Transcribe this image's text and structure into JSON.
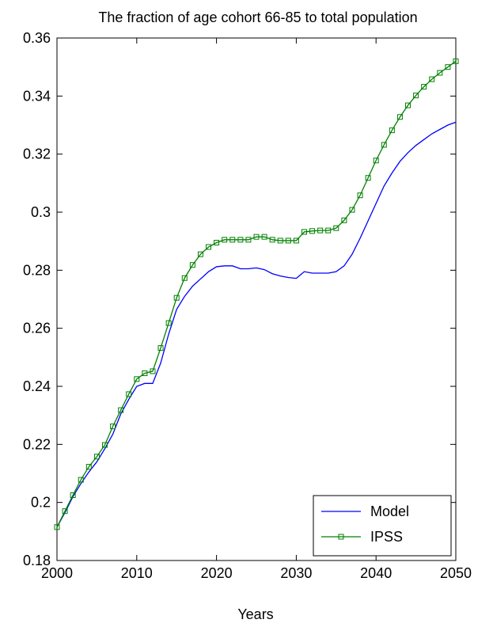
{
  "chart_data": {
    "type": "line",
    "title": "The fraction of age cohort 66-85 to total population",
    "xlabel": "Years",
    "ylabel": "",
    "xlim": [
      2000,
      2050
    ],
    "ylim": [
      0.18,
      0.36
    ],
    "xticks": [
      "2000",
      "2010",
      "2020",
      "2030",
      "2040",
      "2050"
    ],
    "yticks": [
      "0.18",
      "0.2",
      "0.22",
      "0.24",
      "0.26",
      "0.28",
      "0.3",
      "0.32",
      "0.34",
      "0.36"
    ],
    "grid": false,
    "legend_position": "bottom-right",
    "series": [
      {
        "name": "Model",
        "color": "#0000ff",
        "marker": "none",
        "x": [
          2000,
          2001,
          2002,
          2003,
          2004,
          2005,
          2006,
          2007,
          2008,
          2009,
          2010,
          2011,
          2012,
          2013,
          2014,
          2015,
          2016,
          2017,
          2018,
          2019,
          2020,
          2021,
          2022,
          2023,
          2024,
          2025,
          2026,
          2027,
          2028,
          2029,
          2030,
          2031,
          2032,
          2033,
          2034,
          2035,
          2036,
          2037,
          2038,
          2039,
          2040,
          2041,
          2042,
          2043,
          2044,
          2045,
          2046,
          2047,
          2048,
          2049,
          2050
        ],
        "values": [
          0.1915,
          0.1965,
          0.202,
          0.2065,
          0.2105,
          0.214,
          0.2185,
          0.2235,
          0.2305,
          0.2355,
          0.24,
          0.241,
          0.241,
          0.248,
          0.258,
          0.2665,
          0.271,
          0.2745,
          0.277,
          0.2795,
          0.2812,
          0.2815,
          0.2815,
          0.2805,
          0.2805,
          0.2808,
          0.2802,
          0.2788,
          0.278,
          0.2775,
          0.2772,
          0.2795,
          0.279,
          0.279,
          0.279,
          0.2795,
          0.2815,
          0.2855,
          0.291,
          0.297,
          0.303,
          0.309,
          0.3135,
          0.3175,
          0.3205,
          0.323,
          0.325,
          0.327,
          0.3285,
          0.33,
          0.331
        ]
      },
      {
        "name": "IPSS",
        "color": "#008000",
        "marker": "square",
        "x": [
          2000,
          2001,
          2002,
          2003,
          2004,
          2005,
          2006,
          2007,
          2008,
          2009,
          2010,
          2011,
          2012,
          2013,
          2014,
          2015,
          2016,
          2017,
          2018,
          2019,
          2020,
          2021,
          2022,
          2023,
          2024,
          2025,
          2026,
          2027,
          2028,
          2029,
          2030,
          2031,
          2032,
          2033,
          2034,
          2035,
          2036,
          2037,
          2038,
          2039,
          2040,
          2041,
          2042,
          2043,
          2044,
          2045,
          2046,
          2047,
          2048,
          2049,
          2050
        ],
        "values": [
          0.1915,
          0.197,
          0.2025,
          0.2078,
          0.2123,
          0.2158,
          0.2198,
          0.2262,
          0.2318,
          0.2373,
          0.2425,
          0.2445,
          0.2452,
          0.2532,
          0.2618,
          0.2705,
          0.2773,
          0.2818,
          0.2855,
          0.288,
          0.2895,
          0.2905,
          0.2905,
          0.2905,
          0.2905,
          0.2915,
          0.2915,
          0.2905,
          0.2902,
          0.2902,
          0.2902,
          0.2932,
          0.2935,
          0.2937,
          0.2937,
          0.2945,
          0.2972,
          0.3008,
          0.3058,
          0.3118,
          0.3178,
          0.3232,
          0.3282,
          0.3328,
          0.3368,
          0.3402,
          0.3432,
          0.3458,
          0.348,
          0.35,
          0.352
        ]
      }
    ]
  }
}
